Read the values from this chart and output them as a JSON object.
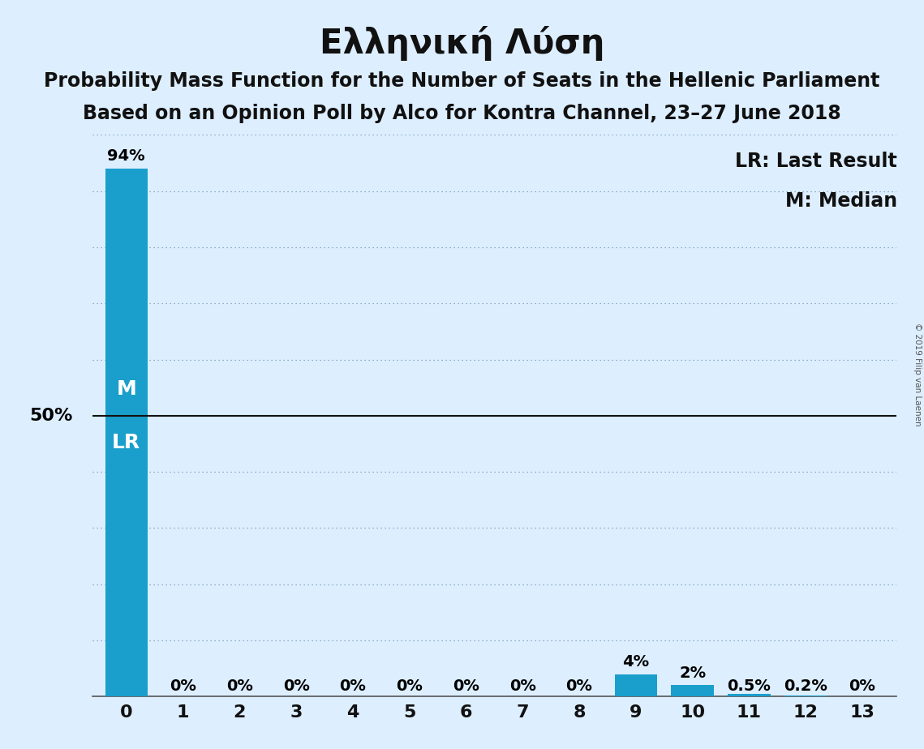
{
  "title": "Ελληνική Λύση",
  "subtitle1": "Probability Mass Function for the Number of Seats in the Hellenic Parliament",
  "subtitle2": "Based on an Opinion Poll by Alco for Kontra Channel, 23–27 June 2018",
  "copyright": "© 2019 Filip van Laenen",
  "categories": [
    0,
    1,
    2,
    3,
    4,
    5,
    6,
    7,
    8,
    9,
    10,
    11,
    12,
    13
  ],
  "values": [
    94,
    0,
    0,
    0,
    0,
    0,
    0,
    0,
    0,
    4,
    2,
    0.5,
    0.2,
    0
  ],
  "bar_labels": [
    "94%",
    "0%",
    "0%",
    "0%",
    "0%",
    "0%",
    "0%",
    "0%",
    "0%",
    "4%",
    "2%",
    "0.5%",
    "0.2%",
    "0%"
  ],
  "bar_color": "#1a9fcc",
  "background_color": "#ddeeff",
  "ylim": [
    0,
    100
  ],
  "ytick_values": [
    0,
    10,
    20,
    30,
    40,
    50,
    60,
    70,
    80,
    90,
    100
  ],
  "fifty_pct_line": 50,
  "legend_lr": "LR: Last Result",
  "legend_m": "M: Median",
  "title_fontsize": 30,
  "subtitle_fontsize": 17,
  "bar_label_fontsize": 14,
  "axis_tick_fontsize": 16,
  "legend_fontsize": 17,
  "m_lr_fontsize": 18
}
